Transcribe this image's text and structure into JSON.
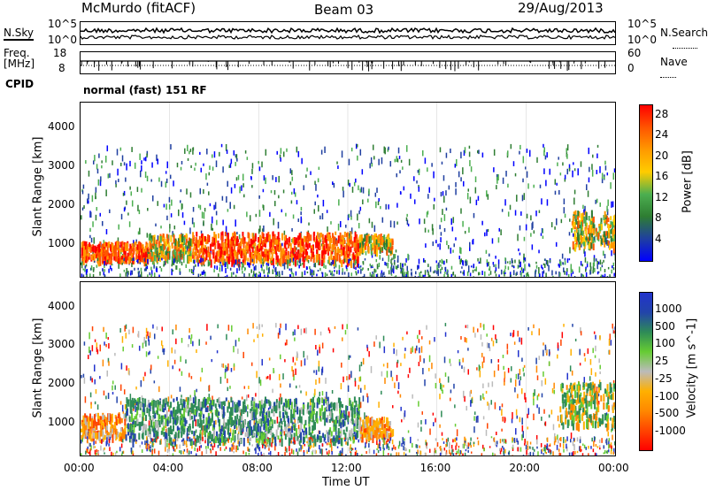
{
  "header": {
    "station": "McMurdo (fitACF)",
    "beam": "Beam 03",
    "date": "29/Aug/2013"
  },
  "top_panels": {
    "nsky_label": "N.Sky",
    "nsearch_label": "N.Search",
    "noise_ticks": [
      "10^5",
      "10^0"
    ],
    "freq_label_1": "Freq.",
    "freq_label_2": "[MHz]",
    "freq_ticks": [
      "18",
      "8"
    ],
    "nave_label": "Nave",
    "nave_ticks": [
      "60",
      "0"
    ],
    "cpid_label": "CPID",
    "cpid_value": "normal (fast) 151 RF"
  },
  "colors": {
    "power_scale": [
      "#0000ff",
      "#1f3fa0",
      "#2e7d32",
      "#4caf50",
      "#ffcc00",
      "#ff9900",
      "#ff5500",
      "#ff0000"
    ],
    "velocity_scale": [
      "#ff0000",
      "#ff4400",
      "#ff8800",
      "#ffb000",
      "#bbbbbb",
      "#66cc33",
      "#2e8b57",
      "#2244aa",
      "#2233cc"
    ]
  },
  "chart_data": [
    {
      "type": "heatmap",
      "title": "",
      "xlabel": "",
      "ylabel": "Slant Range [km]",
      "xlim": [
        0,
        24
      ],
      "ylim": [
        180,
        4650
      ],
      "x_ticks": [
        "00:00",
        "04:00",
        "08:00",
        "12:00",
        "16:00",
        "20:00",
        "00:00"
      ],
      "y_ticks": [
        1000,
        2000,
        3000,
        4000
      ],
      "colorbar": {
        "label": "Power [dB]",
        "ticks": [
          4,
          8,
          12,
          16,
          20,
          24,
          28
        ],
        "range": [
          0,
          30
        ]
      },
      "regions": [
        {
          "hours": [
            0,
            3
          ],
          "range_km": [
            650,
            1100
          ],
          "level": "high"
        },
        {
          "hours": [
            3,
            5
          ],
          "range_km": [
            700,
            1300
          ],
          "level": "medium"
        },
        {
          "hours": [
            5,
            12.5
          ],
          "range_km": [
            600,
            1350
          ],
          "level": "high"
        },
        {
          "hours": [
            12.5,
            14
          ],
          "range_km": [
            900,
            1300
          ],
          "level": "medium"
        },
        {
          "hours": [
            22,
            24
          ],
          "range_km": [
            1000,
            1900
          ],
          "level": "medium"
        }
      ]
    },
    {
      "type": "heatmap",
      "title": "",
      "xlabel": "Time UT",
      "ylabel": "Slant Range [km]",
      "xlim": [
        0,
        24
      ],
      "ylim": [
        180,
        4650
      ],
      "x_ticks": [
        "00:00",
        "04:00",
        "08:00",
        "12:00",
        "16:00",
        "20:00",
        "00:00"
      ],
      "y_ticks": [
        1000,
        2000,
        3000,
        4000
      ],
      "colorbar": {
        "label": "Velocity [m s^-1]",
        "ticks": [
          -1000,
          -500,
          -100,
          -25,
          25,
          100,
          500,
          1000
        ]
      },
      "regions": [
        {
          "hours": [
            0,
            2
          ],
          "range_km": [
            700,
            1300
          ],
          "velocity": "negative"
        },
        {
          "hours": [
            2,
            12.5
          ],
          "range_km": [
            600,
            1700
          ],
          "velocity": "positive"
        },
        {
          "hours": [
            12.5,
            14
          ],
          "range_km": [
            700,
            1200
          ],
          "velocity": "negative"
        },
        {
          "hours": [
            21.5,
            24
          ],
          "range_km": [
            1000,
            2100
          ],
          "velocity": "mixed"
        }
      ]
    }
  ]
}
